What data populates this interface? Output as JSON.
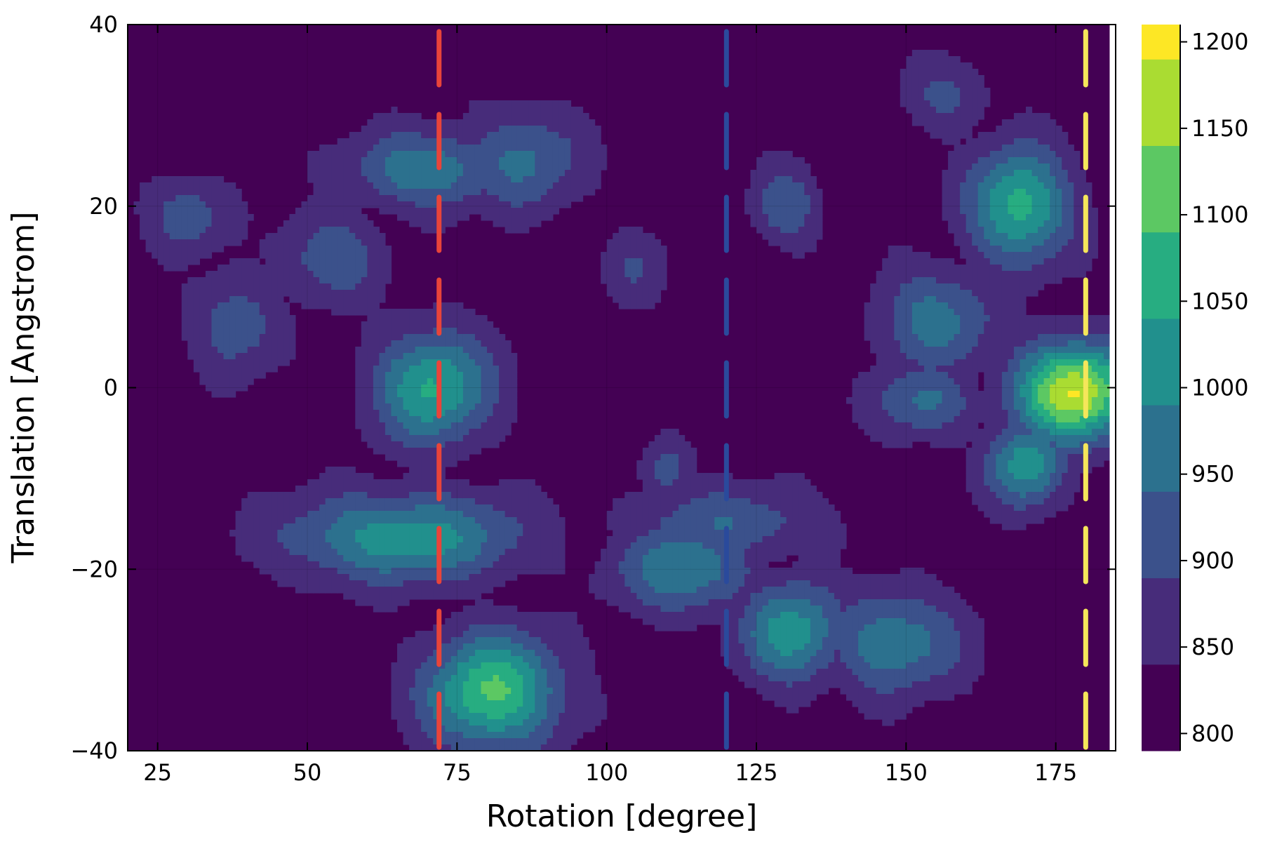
{
  "chart_data": {
    "type": "heatmap",
    "subtype": "filled-contour",
    "title": "",
    "xlabel": "Rotation [degree]",
    "ylabel": "Translation [Angstrom]",
    "xlim": [
      20,
      185
    ],
    "ylim": [
      -40,
      40
    ],
    "xticks": [
      25,
      50,
      75,
      100,
      125,
      150,
      175
    ],
    "yticks": [
      -40,
      -20,
      0,
      20,
      40
    ],
    "ytick_labels": [
      "−40",
      "−20",
      "0",
      "20",
      "40"
    ],
    "grid": true,
    "colorscale": "viridis",
    "colorbar": {
      "ticks": [
        800,
        850,
        900,
        950,
        1000,
        1050,
        1100,
        1150,
        1200
      ],
      "levels": [
        790,
        840,
        890,
        940,
        990,
        1040,
        1090,
        1140,
        1190,
        1210
      ],
      "colors": [
        "#440154",
        "#472c7a",
        "#3b518b",
        "#2c718e",
        "#21908d",
        "#27ad81",
        "#5cc863",
        "#aadc32",
        "#fde725"
      ]
    },
    "reference_lines": [
      {
        "x": 72,
        "color": "#e8443a",
        "style": "dashed"
      },
      {
        "x": 120,
        "color": "#2a4a9c",
        "style": "dashed"
      },
      {
        "x": 180,
        "color": "#f5e65a",
        "style": "dashed"
      }
    ],
    "background_value": 815,
    "peaks": [
      {
        "x": 71,
        "y": 0,
        "value": 1045,
        "sx": 7,
        "sy": 4.5
      },
      {
        "x": 81,
        "y": -33.5,
        "value": 1095,
        "sx": 8,
        "sy": 4.5
      },
      {
        "x": 70,
        "y": 24,
        "value": 985,
        "sx": 9,
        "sy": 3
      },
      {
        "x": 86,
        "y": 25,
        "value": 950,
        "sx": 7,
        "sy": 4
      },
      {
        "x": 66,
        "y": -16.5,
        "value": 1020,
        "sx": 14,
        "sy": 3.5
      },
      {
        "x": 54,
        "y": 14.5,
        "value": 935,
        "sx": 6,
        "sy": 3.5
      },
      {
        "x": 38,
        "y": 7,
        "value": 930,
        "sx": 5,
        "sy": 4
      },
      {
        "x": 30,
        "y": 19,
        "value": 925,
        "sx": 5,
        "sy": 3
      },
      {
        "x": 113,
        "y": -20,
        "value": 990,
        "sx": 8,
        "sy": 3.5
      },
      {
        "x": 131,
        "y": -27,
        "value": 1020,
        "sx": 6,
        "sy": 4
      },
      {
        "x": 148,
        "y": -28,
        "value": 980,
        "sx": 8,
        "sy": 4
      },
      {
        "x": 178,
        "y": -0.5,
        "value": 1195,
        "sx": 7,
        "sy": 3.8
      },
      {
        "x": 169,
        "y": 20,
        "value": 1065,
        "sx": 6,
        "sy": 4.5
      },
      {
        "x": 155,
        "y": 7.5,
        "value": 965,
        "sx": 7,
        "sy": 4
      },
      {
        "x": 153,
        "y": -1.5,
        "value": 950,
        "sx": 6,
        "sy": 3
      },
      {
        "x": 170,
        "y": -8.5,
        "value": 1025,
        "sx": 4.5,
        "sy": 3.5
      },
      {
        "x": 130,
        "y": 20,
        "value": 935,
        "sx": 4,
        "sy": 3
      },
      {
        "x": 110,
        "y": -9,
        "value": 925,
        "sx": 3,
        "sy": 2.5
      },
      {
        "x": 157,
        "y": 32,
        "value": 905,
        "sx": 5,
        "sy": 3
      },
      {
        "x": 105,
        "y": 13,
        "value": 885,
        "sx": 4,
        "sy": 3
      },
      {
        "x": 120,
        "y": -15,
        "value": 930,
        "sx": 12,
        "sy": 3
      }
    ]
  }
}
